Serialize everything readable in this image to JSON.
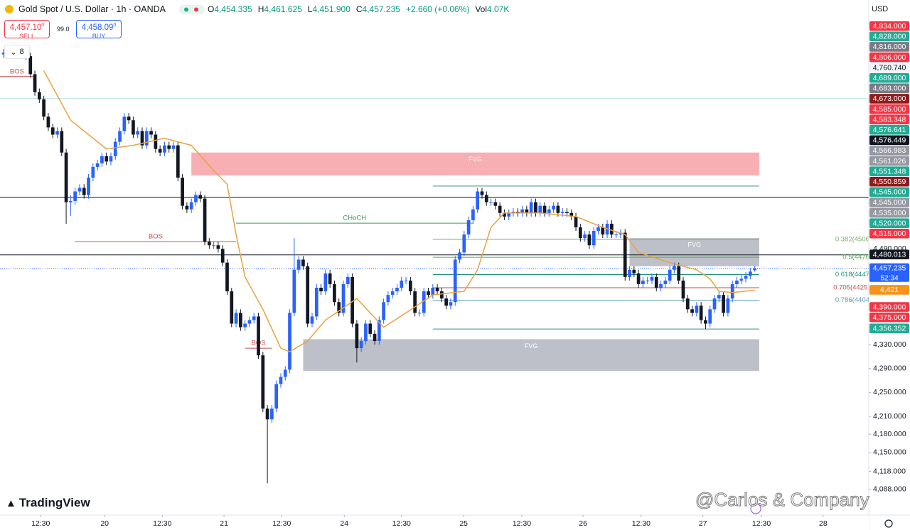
{
  "header": {
    "symbol": "Gold Spot / U.S. Dollar · 1h · OANDA",
    "ohlc": [
      {
        "key": "O",
        "value": "4,454.335"
      },
      {
        "key": "H",
        "value": "4,461.625"
      },
      {
        "key": "L",
        "value": "4,451.900"
      },
      {
        "key": "C",
        "value": "4,457.235"
      }
    ],
    "change": "+2.660 (+0.06%)",
    "volume": {
      "key": "Vol",
      "value": "4.07K"
    }
  },
  "trade": {
    "sell": {
      "price": "4,457.10",
      "sup": "0",
      "label": "SELL"
    },
    "spread": "99.0",
    "buy": {
      "price": "4,458.09",
      "sup": "0",
      "label": "BUY"
    }
  },
  "indicator_count": "8",
  "currency": "USD",
  "logo": "TradingView",
  "watermark": "@Carlos & Company",
  "chart_data": {
    "type": "candlestick",
    "up_color": "#2962ff",
    "down_color": "#131722",
    "open": [
      4815,
      4818,
      4821,
      4824,
      4821,
      4814,
      4812,
      4782,
      4752,
      4740,
      4711,
      4693,
      4681,
      4687,
      4651,
      4568,
      4570,
      4586,
      4592,
      4580,
      4609,
      4627,
      4633,
      4645,
      4636,
      4645,
      4669,
      4687,
      4711,
      4705,
      4681,
      4687,
      4663,
      4687,
      4681,
      4657,
      4651,
      4663,
      4657,
      4663,
      4609,
      4562,
      4556,
      4568,
      4580,
      4574,
      4502,
      4496,
      4496,
      4490,
      4467,
      4419,
      4365,
      4383,
      4359,
      4365,
      4371,
      4377,
      4312,
      4223,
      4205,
      4223,
      4264,
      4276,
      4288,
      4383,
      4455,
      4472,
      4461,
      4365,
      4377,
      4425,
      4419,
      4449,
      4431,
      4401,
      4383,
      4431,
      4443,
      4365,
      4324,
      4336,
      4365,
      4348,
      4336,
      4371,
      4401,
      4413,
      4419,
      4425,
      4437,
      4437,
      4419,
      4383,
      4383,
      4419,
      4413,
      4425,
      4419,
      4407,
      4395,
      4401,
      4472,
      4484,
      4514,
      4538,
      4556,
      4586,
      4580,
      4568,
      4568,
      4562,
      4550,
      4544,
      4550,
      4552,
      4550,
      4556,
      4550,
      4568,
      4550,
      4562,
      4550,
      4556,
      4562,
      4550,
      4552,
      4550,
      4544,
      4526,
      4508,
      4514,
      4496,
      4520,
      4526,
      4514,
      4532,
      4514,
      4514,
      4517,
      4443,
      4455,
      4449,
      4431,
      4437,
      4437,
      4443,
      4425,
      4431,
      4437,
      4455,
      4461,
      4437,
      4407,
      4389,
      4383,
      4395,
      4371,
      4365,
      4389,
      4407,
      4413,
      4383,
      4407,
      4431,
      4437,
      4440,
      4445,
      4454.335
    ],
    "high": [
      4824,
      4827,
      4830,
      4830,
      4827,
      4820,
      4818,
      4788,
      4758,
      4746,
      4717,
      4699,
      4693,
      4693,
      4657,
      4580,
      4592,
      4598,
      4598,
      4615,
      4633,
      4639,
      4651,
      4651,
      4651,
      4675,
      4693,
      4717,
      4717,
      4711,
      4693,
      4693,
      4693,
      4693,
      4687,
      4663,
      4669,
      4669,
      4669,
      4669,
      4615,
      4568,
      4574,
      4586,
      4586,
      4580,
      4508,
      4502,
      4502,
      4496,
      4473,
      4425,
      4389,
      4389,
      4371,
      4377,
      4383,
      4383,
      4318,
      4229,
      4229,
      4270,
      4282,
      4294,
      4389,
      4508,
      4478,
      4478,
      4467,
      4383,
      4431,
      4431,
      4455,
      4455,
      4437,
      4407,
      4437,
      4449,
      4449,
      4371,
      4342,
      4371,
      4371,
      4354,
      4377,
      4407,
      4419,
      4425,
      4431,
      4443,
      4443,
      4443,
      4425,
      4389,
      4425,
      4425,
      4431,
      4431,
      4425,
      4413,
      4407,
      4478,
      4490,
      4520,
      4544,
      4562,
      4592,
      4592,
      4586,
      4574,
      4574,
      4568,
      4556,
      4556,
      4558,
      4558,
      4562,
      4562,
      4574,
      4574,
      4568,
      4568,
      4562,
      4568,
      4568,
      4558,
      4558,
      4556,
      4550,
      4532,
      4520,
      4520,
      4526,
      4532,
      4532,
      4538,
      4538,
      4520,
      4523,
      4523,
      4461,
      4461,
      4455,
      4443,
      4443,
      4449,
      4449,
      4437,
      4443,
      4461,
      4467,
      4467,
      4443,
      4413,
      4395,
      4401,
      4401,
      4377,
      4395,
      4413,
      4419,
      4419,
      4413,
      4437,
      4443,
      4446,
      4451,
      4458,
      4461.625
    ],
    "low": [
      4809,
      4812,
      4815,
      4815,
      4808,
      4806,
      4776,
      4746,
      4734,
      4705,
      4687,
      4675,
      4675,
      4645,
      4532,
      4545,
      4564,
      4580,
      4574,
      4574,
      4603,
      4621,
      4627,
      4630,
      4630,
      4639,
      4663,
      4681,
      4699,
      4675,
      4675,
      4657,
      4657,
      4675,
      4651,
      4645,
      4645,
      4651,
      4651,
      4603,
      4556,
      4550,
      4550,
      4562,
      4568,
      4496,
      4490,
      4490,
      4484,
      4461,
      4413,
      4359,
      4359,
      4353,
      4353,
      4359,
      4365,
      4306,
      4217,
      4098,
      4199,
      4217,
      4258,
      4270,
      4282,
      4377,
      4449,
      4455,
      4359,
      4359,
      4371,
      4413,
      4413,
      4425,
      4395,
      4377,
      4377,
      4425,
      4359,
      4300,
      4318,
      4330,
      4342,
      4330,
      4330,
      4365,
      4395,
      4407,
      4413,
      4419,
      4431,
      4413,
      4377,
      4377,
      4377,
      4407,
      4407,
      4413,
      4401,
      4389,
      4389,
      4395,
      4466,
      4478,
      4508,
      4532,
      4550,
      4574,
      4562,
      4562,
      4556,
      4544,
      4538,
      4538,
      4544,
      4544,
      4544,
      4544,
      4544,
      4544,
      4544,
      4544,
      4544,
      4550,
      4544,
      4544,
      4544,
      4538,
      4520,
      4502,
      4502,
      4490,
      4490,
      4514,
      4508,
      4508,
      4508,
      4508,
      4508,
      4437,
      4437,
      4443,
      4425,
      4425,
      4431,
      4431,
      4419,
      4419,
      4425,
      4431,
      4449,
      4431,
      4401,
      4383,
      4377,
      4377,
      4365,
      4356,
      4359,
      4383,
      4401,
      4377,
      4377,
      4401,
      4425,
      4431,
      4434,
      4439,
      4451.9
    ],
    "close": [
      4818,
      4821,
      4824,
      4821,
      4814,
      4812,
      4782,
      4752,
      4740,
      4711,
      4693,
      4681,
      4687,
      4651,
      4568,
      4570,
      4586,
      4592,
      4580,
      4609,
      4627,
      4633,
      4645,
      4636,
      4645,
      4669,
      4687,
      4711,
      4705,
      4681,
      4687,
      4663,
      4687,
      4681,
      4657,
      4651,
      4663,
      4657,
      4663,
      4609,
      4562,
      4556,
      4568,
      4580,
      4574,
      4502,
      4496,
      4496,
      4490,
      4467,
      4419,
      4365,
      4383,
      4359,
      4365,
      4371,
      4377,
      4312,
      4223,
      4205,
      4223,
      4264,
      4276,
      4288,
      4383,
      4455,
      4472,
      4461,
      4365,
      4377,
      4425,
      4419,
      4449,
      4431,
      4401,
      4383,
      4431,
      4443,
      4365,
      4324,
      4336,
      4365,
      4348,
      4336,
      4371,
      4401,
      4413,
      4419,
      4425,
      4437,
      4437,
      4419,
      4383,
      4383,
      4419,
      4413,
      4425,
      4419,
      4407,
      4395,
      4401,
      4472,
      4484,
      4514,
      4538,
      4556,
      4586,
      4580,
      4568,
      4568,
      4562,
      4550,
      4544,
      4550,
      4552,
      4550,
      4556,
      4550,
      4568,
      4550,
      4562,
      4550,
      4556,
      4562,
      4550,
      4552,
      4550,
      4544,
      4526,
      4508,
      4514,
      4496,
      4520,
      4526,
      4514,
      4532,
      4514,
      4514,
      4517,
      4443,
      4455,
      4449,
      4431,
      4437,
      4437,
      4443,
      4425,
      4431,
      4437,
      4455,
      4461,
      4437,
      4407,
      4389,
      4383,
      4395,
      4371,
      4365,
      4389,
      4407,
      4413,
      4383,
      4407,
      4431,
      4437,
      4440,
      4445,
      4452,
      4457.235
    ],
    "xlim": [
      -0.8,
      193.5
    ],
    "ylim": [
      4045,
      4906
    ],
    "xticks": [
      {
        "value": 8.3,
        "label": "12:30"
      },
      {
        "value": 22.6,
        "label": "20"
      },
      {
        "value": 35.5,
        "label": "12:30"
      },
      {
        "value": 49.3,
        "label": "21"
      },
      {
        "value": 62.2,
        "label": "12:30"
      },
      {
        "value": 76.2,
        "label": "24"
      },
      {
        "value": 89,
        "label": "12:30"
      },
      {
        "value": 102.9,
        "label": "25"
      },
      {
        "value": 115.9,
        "label": "12:30"
      },
      {
        "value": 129.6,
        "label": "26"
      },
      {
        "value": 142.6,
        "label": "12:30"
      },
      {
        "value": 156.4,
        "label": "27"
      },
      {
        "value": 169.5,
        "label": "12:30"
      },
      {
        "value": 183.3,
        "label": "28"
      }
    ],
    "yticks": [
      {
        "value": 4490,
        "label": "4,490.000"
      },
      {
        "value": 4330,
        "label": "4,330.000"
      },
      {
        "value": 4290,
        "label": "4,290.000"
      },
      {
        "value": 4250,
        "label": "4,250.000"
      },
      {
        "value": 4210,
        "label": "4,210.000"
      },
      {
        "value": 4180,
        "label": "4,180.000"
      },
      {
        "value": 4150,
        "label": "4,150.000"
      },
      {
        "value": 4118,
        "label": "4,118.000"
      },
      {
        "value": 4088,
        "label": "4,088.000"
      }
    ],
    "ema": {
      "color": "#e8a33d",
      "x": [
        9,
        15,
        20,
        23,
        29,
        36,
        42,
        47,
        50,
        52,
        54,
        58,
        62,
        64,
        68,
        72,
        79,
        85,
        90,
        96,
        103,
        106,
        109,
        112,
        120,
        128,
        134,
        139,
        142,
        149,
        155,
        158,
        160,
        163,
        168
      ],
      "values": [
        4788,
        4705,
        4675,
        4657,
        4663,
        4675,
        4663,
        4621,
        4598,
        4514,
        4443,
        4389,
        4324,
        4318,
        4336,
        4371,
        4407,
        4359,
        4383,
        4413,
        4419,
        4455,
        4526,
        4550,
        4550,
        4544,
        4526,
        4514,
        4484,
        4467,
        4455,
        4440,
        4419,
        4417,
        4421
      ]
    },
    "zones": [
      {
        "label": "FVG",
        "color": "#f7a1a6",
        "label_color": "#ffffff",
        "x": [
          42,
          169
        ],
        "range": [
          4651,
          4613
        ]
      },
      {
        "label": "FVG",
        "color": "#b2b5be",
        "label_color": "#ffffff",
        "x": [
          140,
          169
        ],
        "range": [
          4508,
          4461
        ]
      },
      {
        "label": "FVG",
        "color": "#b2b5be",
        "label_color": "#ffffff",
        "x": [
          67,
          169
        ],
        "range": [
          4339,
          4286
        ]
      }
    ],
    "structures": [
      {
        "label": "BOS",
        "color": "#c0504d",
        "value": 4778,
        "x": [
          -1,
          7
        ]
      },
      {
        "label": "BOS",
        "color": "#c0504d",
        "value": 4502,
        "x": [
          16,
          52
        ]
      },
      {
        "label": "CHoCH",
        "color": "#3a9a5c",
        "value": 4533,
        "x": [
          52,
          105
        ]
      },
      {
        "label": "BOS",
        "color": "#c0504d",
        "value": 4324,
        "x": [
          54,
          60
        ]
      }
    ],
    "levels": [
      {
        "value": 4576.449,
        "color": "#131722"
      },
      {
        "value": 4480.013,
        "color": "#131722"
      },
      {
        "value": 4741,
        "color": "#a8dede"
      }
    ],
    "fib": {
      "x": [
        96,
        169
      ],
      "range": [
        4595,
        4356
      ],
      "range_color": "#3d8b8b",
      "levels": [
        {
          "value": 4506,
          "label": "0.382(4506",
          "color": "#7fa86a"
        },
        {
          "value": 4476,
          "label": "0.5(4476",
          "color": "#4caf50"
        },
        {
          "value": 4447,
          "label": "0.618(4447",
          "color": "#1e8c7e"
        },
        {
          "value": 4425,
          "label": "0.705(4425.",
          "color": "#c0504d"
        },
        {
          "value": 4404,
          "label": "0.786(4404",
          "color": "#5b9bb5"
        }
      ]
    },
    "price_labels": [
      {
        "label": "4,834.000",
        "value": 4834,
        "color": "#f23645"
      },
      {
        "label": "4,828.000",
        "value": 4828,
        "color": "#22ab94"
      },
      {
        "label": "4,816.000",
        "value": 4816,
        "color": "#787b86"
      },
      {
        "label": "4,806.000",
        "value": 4806,
        "color": "#f23645"
      },
      {
        "label": "4,760.740",
        "value": 4760.74,
        "color": "#f0f3fa",
        "text_color": "#131722"
      },
      {
        "label": "4,689.000",
        "value": 4689,
        "color": "#22ab94"
      },
      {
        "label": "4,683.000",
        "value": 4683,
        "color": "#787b86"
      },
      {
        "label": "4,673.000",
        "value": 4673,
        "color": "#8e1c1c"
      },
      {
        "label": "4,585.000",
        "value": 4585,
        "color": "#f23645"
      },
      {
        "label": "4,583.348",
        "value": 4583.348,
        "color": "#f23645"
      },
      {
        "label": "4,576.641",
        "value": 4576.641,
        "color": "#22ab94"
      },
      {
        "label": "4,576.449",
        "value": 4576.449,
        "color": "#131722"
      },
      {
        "label": "4,566.983",
        "value": 4566.983,
        "color": "#9598a1"
      },
      {
        "label": "4,561.026",
        "value": 4561.026,
        "color": "#9598a1"
      },
      {
        "label": "4,551.348",
        "value": 4551.348,
        "color": "#22ab94"
      },
      {
        "label": "4,550.859",
        "value": 4550.859,
        "color": "#8e1c1c"
      },
      {
        "label": "4,545.000",
        "value": 4545,
        "color": "#22ab94"
      },
      {
        "label": "4,545.000",
        "value": 4545,
        "color": "#9598a1"
      },
      {
        "label": "4,535.000",
        "value": 4535,
        "color": "#9598a1"
      },
      {
        "label": "4,520.000",
        "value": 4520,
        "color": "#22ab94"
      },
      {
        "label": "4,515.000",
        "value": 4515,
        "color": "#f23645"
      },
      {
        "label": "4,480.013",
        "value": 4480.013,
        "color": "#131722"
      },
      {
        "label": "4,457.235",
        "value": 4457.235,
        "color": "#2962ff",
        "countdown": "52:34"
      },
      {
        "label": "4,421",
        "value": 4421,
        "color": "#f7931a"
      },
      {
        "label": "4,390.000",
        "value": 4390,
        "color": "#f23645"
      },
      {
        "label": "4,375.000",
        "value": 4375,
        "color": "#f23645"
      },
      {
        "label": "4,356.352",
        "value": 4356.352,
        "color": "#22ab94"
      }
    ]
  }
}
